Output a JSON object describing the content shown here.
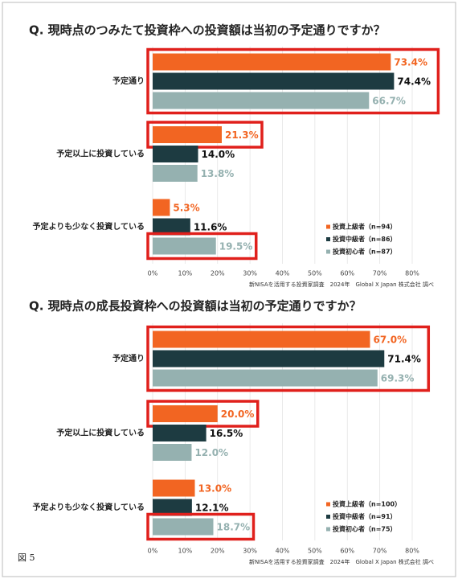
{
  "figure_label": "図 5",
  "chart_data": [
    {
      "type": "bar",
      "orientation": "horizontal",
      "title": "Q. 現時点のつみたて投資枠への投資額は当初の予定通りですか？",
      "categories": [
        "予定通り",
        "予定以上に投資している",
        "予定よりも少なく投資している"
      ],
      "series": [
        {
          "name": "投資上級者（n=94）",
          "color": "#f26522",
          "values": [
            73.4,
            21.3,
            5.3
          ],
          "value_labels": [
            "73.4%",
            "21.3%",
            "5.3%"
          ]
        },
        {
          "name": "投資中級者（n=86）",
          "color": "#1d3b41",
          "values": [
            74.4,
            14.0,
            11.6
          ],
          "value_labels": [
            "74.4%",
            "14.0%",
            "11.6%"
          ]
        },
        {
          "name": "投資初心者（n=87）",
          "color": "#95b1b0",
          "values": [
            66.7,
            13.8,
            19.5
          ],
          "value_labels": [
            "66.7%",
            "13.8%",
            "19.5%"
          ]
        }
      ],
      "xlim": [
        0,
        80
      ],
      "xticks": [
        {
          "value": 0,
          "label": "0%"
        },
        {
          "value": 10,
          "label": "10%"
        },
        {
          "value": 20,
          "label": "20%"
        },
        {
          "value": 30,
          "label": "30%"
        },
        {
          "value": 40,
          "label": "40%"
        },
        {
          "value": 50,
          "label": "50%"
        },
        {
          "value": 60,
          "label": "60%"
        },
        {
          "value": 70,
          "label": "70%"
        },
        {
          "value": 80,
          "label": "80%"
        }
      ],
      "grid": true,
      "legend": "lower right",
      "source": "新NISAを活用する投資家調査　2024年　Global X Japan 株式会社 調べ"
    },
    {
      "type": "bar",
      "orientation": "horizontal",
      "title": "Q. 現時点の成長投資枠への投資額は当初の予定通りですか？",
      "categories": [
        "予定通り",
        "予定以上に投資している",
        "予定よりも少なく投資している"
      ],
      "series": [
        {
          "name": "投資上級者（n=100）",
          "color": "#f26522",
          "values": [
            67.0,
            20.0,
            13.0
          ],
          "value_labels": [
            "67.0%",
            "20.0%",
            "13.0%"
          ]
        },
        {
          "name": "投資中級者（n=91）",
          "color": "#1d3b41",
          "values": [
            71.4,
            16.5,
            12.1
          ],
          "value_labels": [
            "71.4%",
            "16.5%",
            "12.1%"
          ]
        },
        {
          "name": "投資初心者（n=75）",
          "color": "#95b1b0",
          "values": [
            69.3,
            12.0,
            18.7
          ],
          "value_labels": [
            "69.3%",
            "12.0%",
            "18.7%"
          ]
        }
      ],
      "xlim": [
        0,
        80
      ],
      "xticks": [
        {
          "value": 0,
          "label": "0%"
        },
        {
          "value": 10,
          "label": "10%"
        },
        {
          "value": 20,
          "label": "20%"
        },
        {
          "value": 30,
          "label": "30%"
        },
        {
          "value": 40,
          "label": "40%"
        },
        {
          "value": 50,
          "label": "50%"
        },
        {
          "value": 60,
          "label": "60%"
        },
        {
          "value": 70,
          "label": "70%"
        },
        {
          "value": 80,
          "label": "80%"
        }
      ],
      "grid": true,
      "legend": "lower right",
      "source": "新NISAを活用する投資家調査　2024年　Global X Japan 株式会社 調べ"
    }
  ]
}
